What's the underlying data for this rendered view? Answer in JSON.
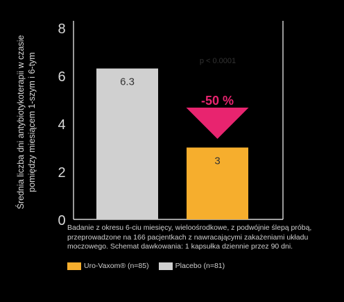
{
  "chart_data": {
    "type": "bar",
    "ylabel": "Średnia liczba dni antybiotykoterapii w czasie pomiędzy miesiącem 1-szym i 6-tym",
    "ylim": [
      0,
      8
    ],
    "yticks": [
      0,
      2,
      4,
      6,
      8
    ],
    "categories": [
      "Placebo (n=81)",
      "Uro-Vaxom® (n=85)"
    ],
    "values": [
      6.3,
      3
    ],
    "value_labels": [
      "6.3",
      "3"
    ],
    "colors": [
      "#d0d0d0",
      "#f6ae2d"
    ],
    "annotation_pvalue": "p < 0.0001",
    "annotation_reduction": "-50 %",
    "reduction_color": "#e8246f",
    "grid": false
  },
  "caption": "Badanie z okresu 6-ciu miesięcy, wieloośrodkowe, z podwójnie ślepą próbą, przeprowadzone na 166 pacjentkach z nawracającymi zakażeniami układu moczowego. Schemat dawkowania: 1 kapsułka dziennie przez 90 dni.",
  "legend": [
    {
      "label": "Uro-Vaxom® (n=85)",
      "color": "#f6ae2d"
    },
    {
      "label": "Placebo (n=81)",
      "color": "#d0d0d0"
    }
  ]
}
